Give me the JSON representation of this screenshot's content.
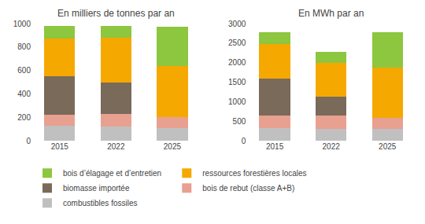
{
  "chart_data": [
    {
      "type": "bar",
      "stacked": true,
      "title": "En milliers de tonnes par an",
      "categories": [
        "2015",
        "2022",
        "2025"
      ],
      "series": [
        {
          "name": "combustibles fossiles",
          "color": "#c0c0c0",
          "values": [
            130,
            120,
            110
          ]
        },
        {
          "name": "bois de rebut (classe A+B)",
          "color": "#e8a090",
          "values": [
            90,
            110,
            90
          ]
        },
        {
          "name": "biomasse importée",
          "color": "#7a6a5a",
          "values": [
            330,
            270,
            0
          ]
        },
        {
          "name": "ressources forestières locales",
          "color": "#f5a800",
          "values": [
            320,
            380,
            435
          ]
        },
        {
          "name": "bois d’élagage et d’entretien",
          "color": "#8dc63f",
          "values": [
            110,
            100,
            340
          ]
        }
      ],
      "ylim": [
        0,
        1000
      ],
      "yticks": [
        0,
        200,
        400,
        600,
        800,
        1000
      ],
      "grid": false,
      "legend": "lower left"
    },
    {
      "type": "bar",
      "stacked": true,
      "title": "En MWh par an",
      "categories": [
        "2015",
        "2022",
        "2025"
      ],
      "series": [
        {
          "name": "combustibles fossiles",
          "color": "#c0c0c0",
          "values": [
            330,
            310,
            300
          ]
        },
        {
          "name": "bois de rebut (classe A+B)",
          "color": "#e8a090",
          "values": [
            310,
            330,
            290
          ]
        },
        {
          "name": "biomasse importée",
          "color": "#7a6a5a",
          "values": [
            950,
            480,
            0
          ]
        },
        {
          "name": "ressources forestières locales",
          "color": "#f5a800",
          "values": [
            880,
            870,
            1290
          ]
        },
        {
          "name": "bois d’élagage et d’entretien",
          "color": "#8dc63f",
          "values": [
            310,
            290,
            900
          ]
        }
      ],
      "ylim": [
        0,
        3000
      ],
      "yticks": [
        0,
        500,
        1000,
        1500,
        2000,
        2500,
        3000
      ],
      "grid": false,
      "legend": "lower left"
    }
  ]
}
